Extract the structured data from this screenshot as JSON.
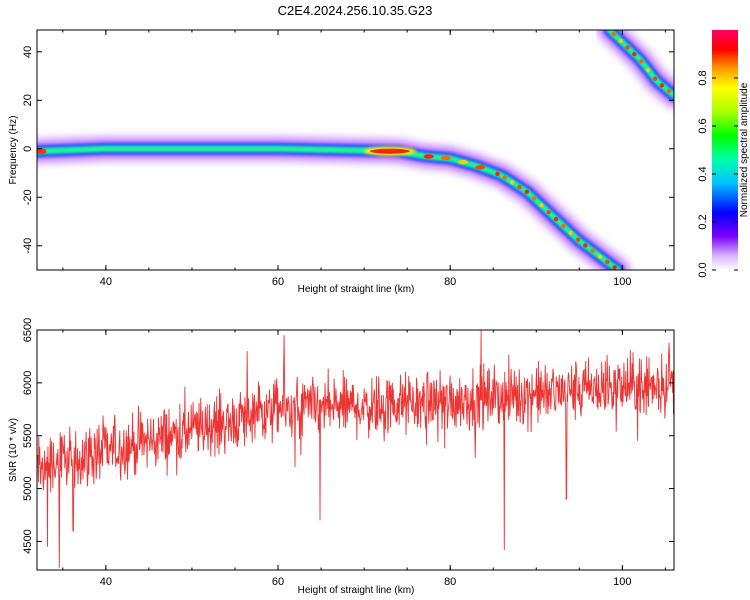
{
  "figure": {
    "title": "C2E4.2024.256.10.35.G23"
  },
  "chart_data": [
    {
      "type": "heatmap",
      "xlabel": "Height of straight line (km)",
      "ylabel": "Frequency (Hz)",
      "xlim": [
        32,
        106
      ],
      "ylim": [
        -50,
        49
      ],
      "x_ticks": [
        40,
        60,
        80,
        100
      ],
      "y_ticks": [
        -40,
        -20,
        0,
        20,
        40
      ],
      "colorbar": {
        "label": "Normalized spectral amplitude",
        "range": [
          0,
          1
        ],
        "ticks": [
          0.0,
          0.2,
          0.4,
          0.6,
          0.8
        ],
        "tick_labels": [
          "0.0",
          "0.2",
          "0.4",
          "0.6",
          "0.8"
        ]
      },
      "ridge": [
        {
          "x": 32,
          "y": -1
        },
        {
          "x": 40,
          "y": 0
        },
        {
          "x": 60,
          "y": 0
        },
        {
          "x": 74,
          "y": -1
        },
        {
          "x": 77,
          "y": -3
        },
        {
          "x": 80,
          "y": -4
        },
        {
          "x": 83,
          "y": -7
        },
        {
          "x": 86,
          "y": -11
        },
        {
          "x": 89,
          "y": -18
        },
        {
          "x": 92,
          "y": -28
        },
        {
          "x": 95,
          "y": -38
        },
        {
          "x": 98,
          "y": -46
        },
        {
          "x": 99.5,
          "y": -50
        }
      ],
      "ridge2": [
        {
          "x": 98.5,
          "y": 49
        },
        {
          "x": 102,
          "y": 37
        },
        {
          "x": 104,
          "y": 28
        },
        {
          "x": 106,
          "y": 22
        }
      ],
      "hotspot": {
        "x": 73,
        "y": -1
      }
    },
    {
      "type": "line",
      "xlabel": "Height of straight line (km)",
      "ylabel": "SNR (10 * v/v)",
      "xlim": [
        32,
        106
      ],
      "ylim": [
        4230,
        6500
      ],
      "x_ticks": [
        40,
        60,
        80,
        100
      ],
      "y_ticks": [
        4500,
        5000,
        5500,
        6000,
        6500
      ],
      "series_color": "#ee3333",
      "trend": [
        {
          "x": 32,
          "y": 5200
        },
        {
          "x": 45,
          "y": 5450
        },
        {
          "x": 60,
          "y": 5750
        },
        {
          "x": 75,
          "y": 5800
        },
        {
          "x": 90,
          "y": 5900
        },
        {
          "x": 106,
          "y": 6000
        }
      ],
      "noise_amplitude": 260,
      "spikes": [
        {
          "x": 34.6,
          "y": 4250
        },
        {
          "x": 33.2,
          "y": 4450
        },
        {
          "x": 36.2,
          "y": 4600
        },
        {
          "x": 60.7,
          "y": 6450
        },
        {
          "x": 64.9,
          "y": 4700
        },
        {
          "x": 83.6,
          "y": 6500
        },
        {
          "x": 86.3,
          "y": 4420
        },
        {
          "x": 56.4,
          "y": 6300
        },
        {
          "x": 93.5,
          "y": 4900
        },
        {
          "x": 105.4,
          "y": 6380
        }
      ]
    }
  ]
}
